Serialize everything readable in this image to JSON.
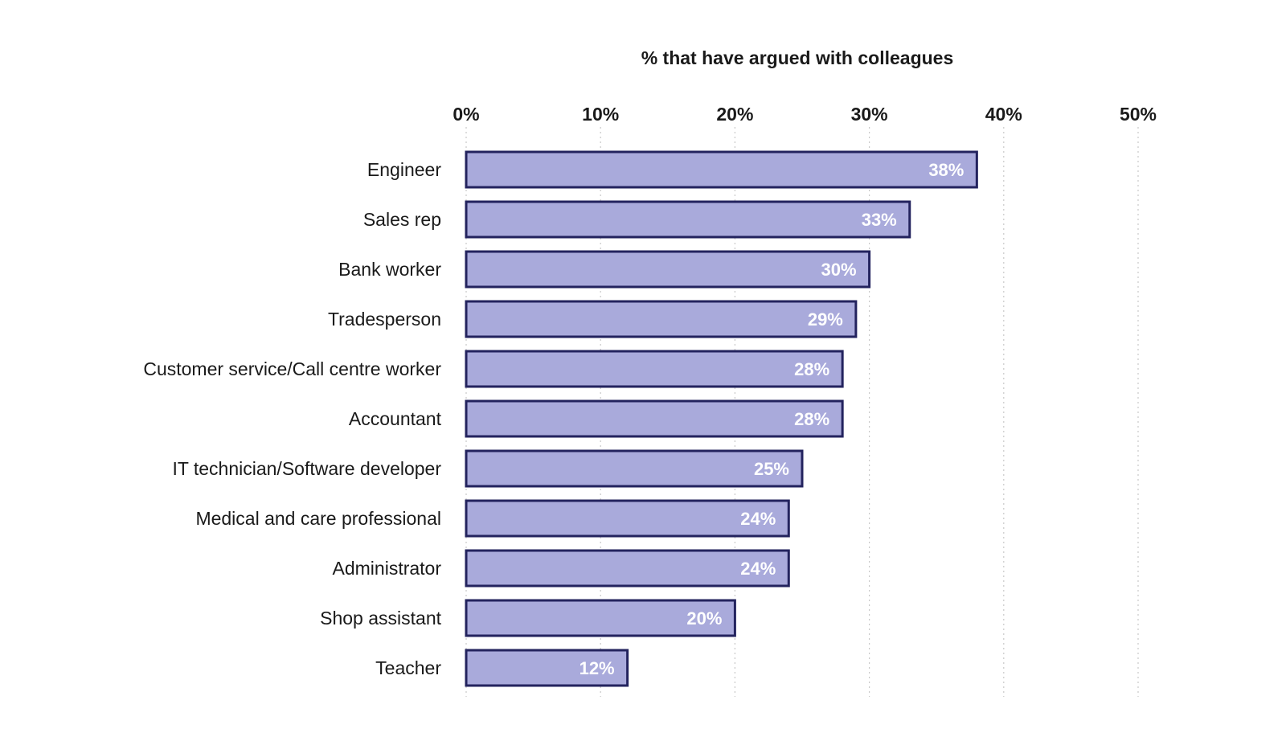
{
  "chart_data": {
    "type": "bar",
    "orientation": "horizontal",
    "title": "",
    "xlabel": "% that have argued with colleagues",
    "ylabel": "",
    "xlim": [
      0,
      50
    ],
    "xticks": [
      0,
      10,
      20,
      30,
      40,
      50
    ],
    "xtick_labels": [
      "0%",
      "10%",
      "20%",
      "30%",
      "40%",
      "50%"
    ],
    "grid": true,
    "categories": [
      "Engineer",
      "Sales rep",
      "Bank worker",
      "Tradesperson",
      "Customer service/Call centre worker",
      "Accountant",
      "IT technician/Software developer",
      "Medical and care professional",
      "Administrator",
      "Shop assistant",
      "Teacher"
    ],
    "values": [
      38,
      33,
      30,
      29,
      28,
      28,
      25,
      24,
      24,
      20,
      12
    ],
    "value_labels": [
      "38%",
      "33%",
      "30%",
      "29%",
      "28%",
      "28%",
      "25%",
      "24%",
      "24%",
      "20%",
      "12%"
    ],
    "colors": {
      "bar_fill": "#a9aadb",
      "bar_stroke": "#23235e",
      "value_text": "#ffffff",
      "text": "#1a1a1a"
    }
  }
}
